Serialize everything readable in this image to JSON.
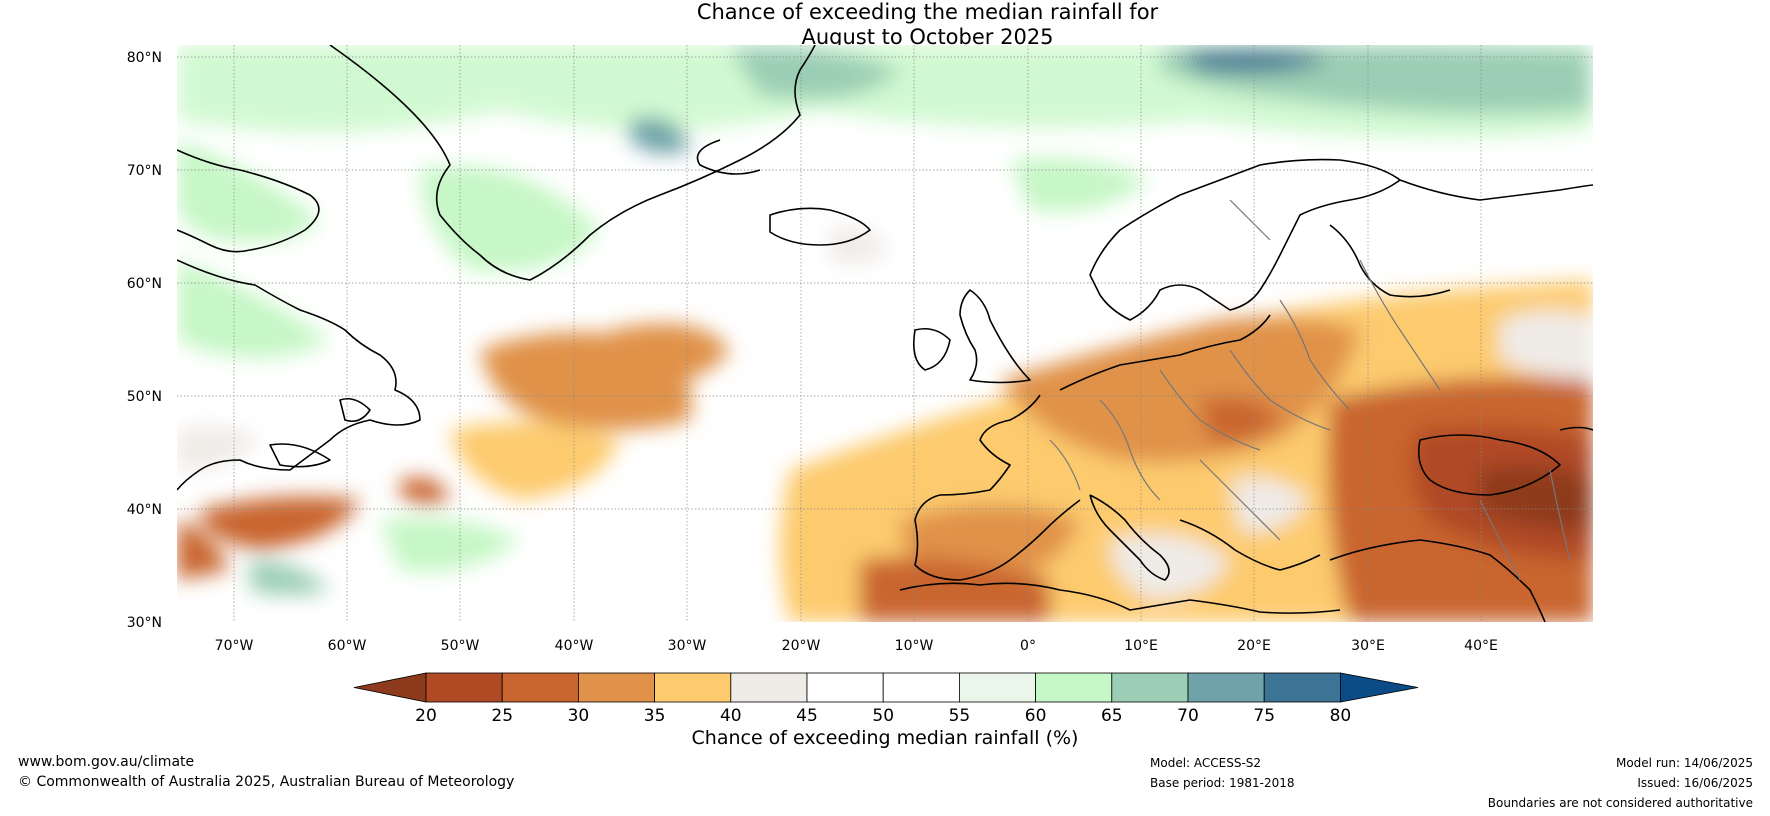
{
  "title": {
    "line1": "Chance of exceeding the median rainfall for",
    "line2": "August to October 2025"
  },
  "map": {
    "lat_labels": [
      "80°N",
      "70°N",
      "60°N",
      "50°N",
      "40°N",
      "30°N"
    ],
    "lon_labels": [
      "70°W",
      "60°W",
      "50°W",
      "40°W",
      "30°W",
      "20°W",
      "10°W",
      "0°",
      "10°E",
      "20°E",
      "30°E",
      "40°E"
    ],
    "extent": {
      "lon_min": -75,
      "lon_max": 50,
      "lat_min": 30,
      "lat_max": 81
    }
  },
  "legend": {
    "title": "Chance of exceeding median rainfall (%)",
    "ticks": [
      "20",
      "25",
      "30",
      "35",
      "40",
      "45",
      "50",
      "55",
      "60",
      "65",
      "70",
      "75",
      "80"
    ],
    "colors": [
      "#8e3a1c",
      "#b04a25",
      "#c9652f",
      "#e0924a",
      "#fdcb6e",
      "#efebe7",
      "#ffffff",
      "#ffffff",
      "#e9f6e9",
      "#c6f7c6",
      "#9bceb4",
      "#6fa3a9",
      "#3d7394",
      "#0b4b86"
    ]
  },
  "footer": {
    "website": "www.bom.gov.au/climate",
    "copyright": "© Commonwealth of Australia 2025, Australian Bureau of Meteorology",
    "model": "Model: ACCESS-S2",
    "base_period": "Base period: 1981-2018",
    "model_run": "Model run: 14/06/2025",
    "issued": "Issued: 16/06/2025",
    "disclaimer": "Boundaries are not considered authoritative"
  }
}
